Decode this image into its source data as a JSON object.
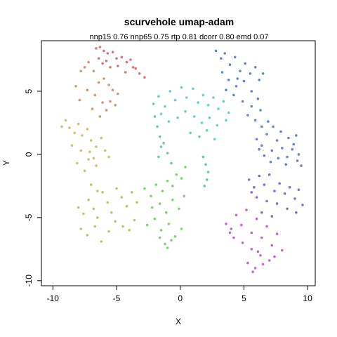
{
  "chart_data": {
    "type": "scatter",
    "title": "scurvehole umap-adam",
    "subtitle": "nnp15 0.76 nnp65 0.75 rtp 0.81 dcorr 0.80 emd 0.07",
    "xlabel": "X",
    "ylabel": "Y",
    "xlim": [
      -10.9,
      10.6
    ],
    "ylim": [
      -10.4,
      9.0
    ],
    "x_ticks": [
      -10,
      -5,
      0,
      5,
      10
    ],
    "y_ticks": [
      -10,
      -5,
      0,
      5
    ],
    "x_tick_labels": [
      "-10",
      "-5",
      "0",
      "5",
      "10"
    ],
    "y_tick_labels": [
      "-10",
      "-5",
      "0",
      "5"
    ],
    "grid": false,
    "legend": "none",
    "color_scale": "rainbow hue along manifold coordinate",
    "series": [
      {
        "color": "#cc5f5f",
        "x": [
          -6.6,
          -6.3,
          -6.0,
          -5.7,
          -5.3,
          -5.0,
          -4.6,
          -4.2,
          -3.9,
          -3.5,
          -3.2,
          -2.8,
          -6.1,
          -5.5,
          -4.9,
          -4.3,
          -3.7,
          -6.4,
          -5.8
        ],
        "y": [
          8.4,
          8.5,
          8.2,
          8.0,
          8.1,
          7.6,
          7.7,
          7.3,
          7.5,
          6.8,
          6.4,
          6.1,
          7.2,
          6.9,
          7.0,
          6.5,
          6.9,
          7.6,
          7.4
        ]
      },
      {
        "color": "#c98452",
        "x": [
          -7.8,
          -7.5,
          -7.2,
          -6.8,
          -6.4,
          -6.0,
          -5.6,
          -5.3,
          -4.9,
          -7.3,
          -6.7,
          -6.1,
          -5.5,
          -8.2,
          -7.9,
          -6.9,
          -6.3,
          -5.8,
          -5.1
        ],
        "y": [
          6.6,
          6.9,
          7.3,
          6.6,
          5.7,
          6.0,
          5.5,
          5.1,
          4.8,
          5.1,
          4.7,
          4.1,
          4.2,
          5.4,
          4.3,
          3.6,
          3.0,
          3.5,
          3.9
        ]
      },
      {
        "color": "#c8b45a",
        "x": [
          -9.3,
          -9.0,
          -8.7,
          -8.3,
          -8.0,
          -7.7,
          -7.3,
          -7.0,
          -6.6,
          -6.2,
          -5.9,
          -5.6,
          -8.5,
          -7.8,
          -7.2,
          -6.6,
          -8.1,
          -7.5,
          -7.1,
          -6.8
        ],
        "y": [
          2.2,
          2.7,
          2.1,
          1.7,
          2.4,
          1.5,
          2.0,
          1.1,
          0.6,
          1.3,
          0.3,
          -0.2,
          0.7,
          0.3,
          -0.4,
          -0.9,
          -0.7,
          -1.3,
          0.2,
          -0.3
        ]
      },
      {
        "color": "#a8c14c",
        "x": [
          -8.0,
          -7.6,
          -7.2,
          -6.8,
          -6.5,
          -6.1,
          -5.7,
          -5.4,
          -5.0,
          -4.6,
          -4.2,
          -3.8,
          -3.4,
          -7.8,
          -7.3,
          -6.7,
          -6.2,
          -5.6,
          -5.1,
          -4.5,
          -4.0,
          -3.6,
          -7.0,
          -6.5
        ],
        "y": [
          -4.2,
          -4.7,
          -3.6,
          -4.3,
          -5.0,
          -3.0,
          -3.8,
          -4.6,
          -2.7,
          -3.4,
          -4.1,
          -3.0,
          -3.8,
          -5.9,
          -6.4,
          -5.7,
          -6.9,
          -6.1,
          -5.3,
          -5.7,
          -6.0,
          -5.2,
          -2.4,
          -2.9
        ]
      },
      {
        "color": "#6cc95a",
        "x": [
          -2.8,
          -2.3,
          -1.9,
          -1.4,
          -1.0,
          -0.6,
          -0.3,
          0.1,
          0.4,
          -2.2,
          -1.6,
          -1.1,
          -0.6,
          -0.1,
          0.3,
          -2.6,
          -2.0,
          -1.5,
          -0.9,
          -0.4,
          0.1,
          -1.2,
          -0.7,
          -1.6,
          -1.0
        ],
        "y": [
          -2.7,
          -3.3,
          -2.4,
          -2.9,
          -2.1,
          -2.5,
          -1.6,
          -1.9,
          -1.0,
          -4.2,
          -3.9,
          -4.6,
          -3.6,
          -4.3,
          -3.3,
          -5.6,
          -5.1,
          -6.0,
          -5.5,
          -6.5,
          -5.9,
          -7.1,
          -6.8,
          -6.6,
          -7.4
        ]
      },
      {
        "color": "#4ec28a",
        "x": [
          -2.0,
          -1.8,
          -1.6,
          -1.5,
          -1.7,
          -1.3,
          -1.0,
          -0.7,
          1.8,
          2.0,
          2.2,
          2.1,
          1.9
        ],
        "y": [
          3.0,
          2.2,
          1.4,
          0.6,
          -0.2,
          0.9,
          0.1,
          -0.7,
          -0.2,
          -0.8,
          -1.4,
          -2.0,
          -2.5
        ]
      },
      {
        "color": "#4ec7c0",
        "x": [
          -2.1,
          -1.7,
          -1.2,
          -0.8,
          -0.4,
          0.1,
          0.5,
          1.0,
          1.4,
          1.8,
          2.2,
          2.6,
          3.0,
          3.4,
          3.8,
          -1.5,
          -0.9,
          -0.2,
          0.4,
          1.1,
          1.7,
          2.3,
          2.9,
          3.6,
          0.8,
          1.5,
          2.1,
          2.7
        ],
        "y": [
          4.0,
          4.6,
          3.8,
          5.0,
          4.3,
          5.3,
          4.5,
          5.2,
          4.1,
          4.7,
          3.9,
          4.5,
          3.6,
          4.2,
          3.3,
          3.2,
          2.6,
          2.9,
          3.4,
          3.0,
          2.5,
          2.9,
          2.3,
          2.7,
          1.7,
          1.4,
          1.9,
          1.2
        ]
      },
      {
        "color": "#4a6fc6",
        "x": [
          2.8,
          3.2,
          3.5,
          3.9,
          4.3,
          4.7,
          5.1,
          5.5,
          5.9,
          6.2,
          6.5,
          3.3,
          3.8,
          4.4,
          5.0,
          5.6,
          6.1,
          4.2,
          4.9,
          5.6,
          6.3,
          5.3,
          5.9,
          6.4,
          3.6,
          4.5
        ],
        "y": [
          8.2,
          7.6,
          8.0,
          7.1,
          7.7,
          6.6,
          7.2,
          6.4,
          6.9,
          5.9,
          6.4,
          6.5,
          5.9,
          5.4,
          5.8,
          5.0,
          4.4,
          4.7,
          4.2,
          3.8,
          3.5,
          3.1,
          2.7,
          2.2,
          5.1,
          6.0
        ]
      },
      {
        "color": "#5468cf",
        "x": [
          6.0,
          6.4,
          6.8,
          7.2,
          7.6,
          8.0,
          8.4,
          8.8,
          9.2,
          9.5,
          6.6,
          7.1,
          7.7,
          8.3,
          8.9,
          9.3,
          7.3,
          7.9,
          8.5,
          9.1,
          6.2,
          6.9
        ],
        "y": [
          1.2,
          0.7,
          1.6,
          0.3,
          1.1,
          0.5,
          -0.2,
          0.4,
          -0.5,
          -0.9,
          -0.1,
          -0.6,
          -0.3,
          -0.8,
          0.8,
          0.0,
          2.2,
          1.8,
          1.3,
          1.5,
          0.4,
          2.6
        ]
      },
      {
        "color": "#7a4fc9",
        "x": [
          5.4,
          5.8,
          6.2,
          6.6,
          7.0,
          7.4,
          7.8,
          8.2,
          8.6,
          9.0,
          9.3,
          9.6,
          6.0,
          6.8,
          7.6,
          8.4,
          9.1,
          5.6,
          6.4,
          7.2
        ],
        "y": [
          -2.0,
          -2.6,
          -1.7,
          -2.4,
          -1.6,
          -2.9,
          -2.3,
          -3.1,
          -2.6,
          -3.5,
          -2.8,
          -4.0,
          -3.4,
          -3.7,
          -3.9,
          -4.3,
          -4.6,
          -3.0,
          -4.6,
          -4.9
        ]
      },
      {
        "color": "#b14fc4",
        "x": [
          3.6,
          4.0,
          4.4,
          4.8,
          5.2,
          5.6,
          6.0,
          6.4,
          6.8,
          7.2,
          7.6,
          8.0,
          4.2,
          4.9,
          5.6,
          6.3,
          7.0,
          5.3,
          5.9,
          6.5,
          5.7,
          3.9,
          7.4,
          6.1
        ],
        "y": [
          -5.5,
          -5.9,
          -4.8,
          -5.6,
          -4.4,
          -6.2,
          -5.1,
          -6.6,
          -5.7,
          -7.2,
          -6.3,
          -7.6,
          -6.6,
          -7.0,
          -7.5,
          -8.0,
          -8.4,
          -8.6,
          -9.0,
          -8.7,
          -9.3,
          -6.2,
          -8.1,
          -7.7
        ]
      }
    ]
  }
}
